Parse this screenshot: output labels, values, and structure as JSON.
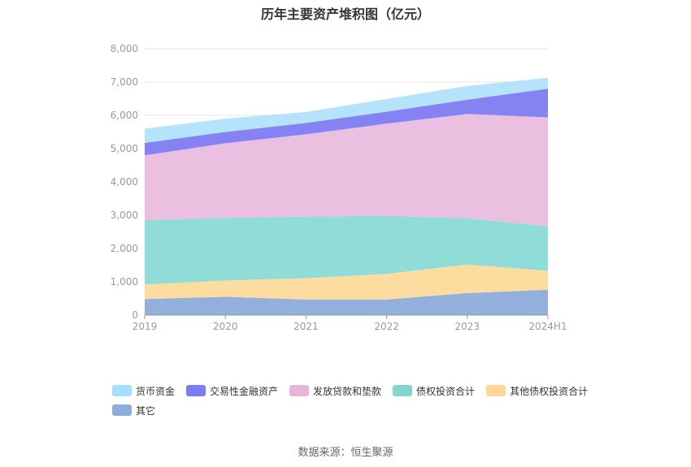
{
  "chart_data": {
    "type": "area",
    "title": "历年主要资产堆积图（亿元）",
    "categories": [
      "2019",
      "2020",
      "2021",
      "2022",
      "2023",
      "2024H1"
    ],
    "y_ticks": [
      "0",
      "1,000",
      "2,000",
      "3,000",
      "4,000",
      "5,000",
      "6,000",
      "7,000",
      "8,000"
    ],
    "ylim": [
      0,
      8000
    ],
    "stacked": true,
    "grid": true,
    "legend_position": "bottom",
    "series": [
      {
        "name": "其它",
        "color": "#93b0dd",
        "values": [
          480,
          550,
          470,
          470,
          660,
          760
        ]
      },
      {
        "name": "其他债权投资合计",
        "color": "#fddca0",
        "values": [
          440,
          490,
          640,
          770,
          860,
          570
        ]
      },
      {
        "name": "债权投资合计",
        "color": "#8fdcd8",
        "values": [
          1930,
          1880,
          1850,
          1740,
          1390,
          1340
        ]
      },
      {
        "name": "发放贷款和垫款",
        "color": "#ebbfdf",
        "values": [
          1950,
          2240,
          2470,
          2770,
          3130,
          3270
        ]
      },
      {
        "name": "交易性金融资产",
        "color": "#8583f3",
        "values": [
          370,
          340,
          340,
          360,
          430,
          860
        ]
      },
      {
        "name": "货币资金",
        "color": "#b4e3fb",
        "values": [
          430,
          400,
          330,
          380,
          410,
          330
        ]
      }
    ]
  },
  "legend": [
    "货币资金",
    "交易性金融资产",
    "发放贷款和垫款",
    "债权投资合计",
    "其他债权投资合计",
    "其它"
  ],
  "legend_colors": [
    "#a6dffb",
    "#7e7cf2",
    "#e6b5d9",
    "#83d5d2",
    "#fdd89a",
    "#8eaddc"
  ],
  "source": "数据来源：恒生聚源"
}
